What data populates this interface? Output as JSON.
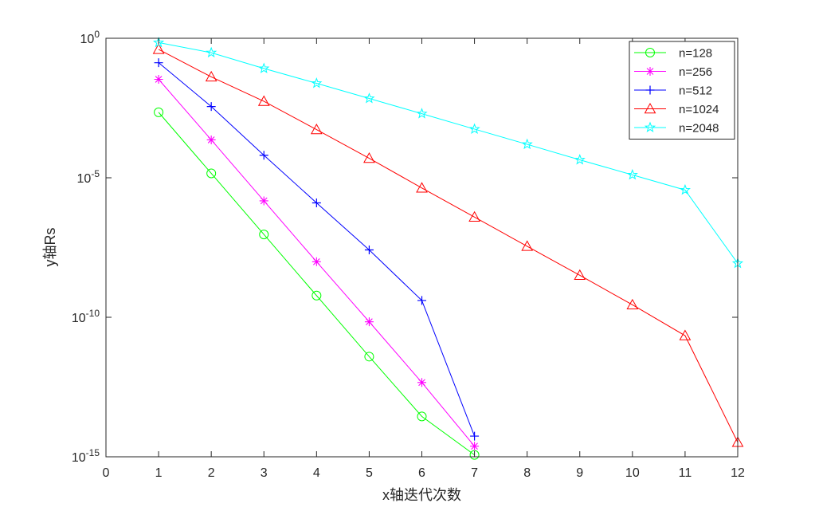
{
  "chart_data": {
    "type": "line",
    "title": "",
    "xlabel": "x轴迭代次数",
    "ylabel": "y轴Rs",
    "xlim": [
      0,
      12
    ],
    "ylim": [
      1e-15,
      1
    ],
    "yscale": "log",
    "grid": false,
    "legend_position": "top-right",
    "x_ticks": [
      "0",
      "1",
      "2",
      "3",
      "4",
      "5",
      "6",
      "7",
      "8",
      "9",
      "10",
      "11",
      "12"
    ],
    "y_ticks": [
      {
        "base": "10",
        "exp": "0",
        "value": 1
      },
      {
        "base": "10",
        "exp": "-5",
        "value": 1e-05
      },
      {
        "base": "10",
        "exp": "-10",
        "value": 1e-10
      },
      {
        "base": "10",
        "exp": "-15",
        "value": 1e-15
      }
    ],
    "series": [
      {
        "name": "n=128",
        "color": "#00ff00",
        "marker": "circle",
        "x": [
          1,
          2,
          3,
          4,
          5,
          6,
          7
        ],
        "y": [
          0.00222,
          1.44e-05,
          9.3e-08,
          6e-10,
          3.9e-12,
          2.8e-14,
          1.17e-15
        ]
      },
      {
        "name": "n=256",
        "color": "#ff00ff",
        "marker": "asterisk",
        "x": [
          1,
          2,
          3,
          4,
          5,
          6,
          7
        ],
        "y": [
          0.0338,
          0.000228,
          1.49e-06,
          9.8e-09,
          6.9e-11,
          4.6e-13,
          2.4e-15
        ]
      },
      {
        "name": "n=512",
        "color": "#0000ff",
        "marker": "plus",
        "x": [
          1,
          2,
          3,
          4,
          5,
          6,
          7
        ],
        "y": [
          0.133,
          0.00358,
          6.4e-05,
          1.26e-06,
          2.6e-08,
          4e-10,
          5.5e-15
        ]
      },
      {
        "name": "n=1024",
        "color": "#ff0000",
        "marker": "triangle",
        "x": [
          1,
          2,
          3,
          4,
          5,
          6,
          7,
          8,
          9,
          10,
          11,
          12
        ],
        "y": [
          0.4,
          0.0413,
          0.0055,
          0.000535,
          5e-05,
          4.3e-06,
          3.9e-07,
          3.5e-08,
          3.2e-09,
          2.8e-10,
          2.2e-11,
          3.3e-15
        ]
      },
      {
        "name": "n=2048",
        "color": "#00ffff",
        "marker": "pentagram",
        "x": [
          1,
          2,
          3,
          4,
          5,
          6,
          7,
          8,
          9,
          10,
          11,
          12
        ],
        "y": [
          0.7,
          0.304,
          0.0826,
          0.0243,
          0.00695,
          0.00198,
          0.000555,
          0.000158,
          4.4e-05,
          1.27e-05,
          3.64e-06,
          8.6e-09
        ]
      }
    ]
  }
}
